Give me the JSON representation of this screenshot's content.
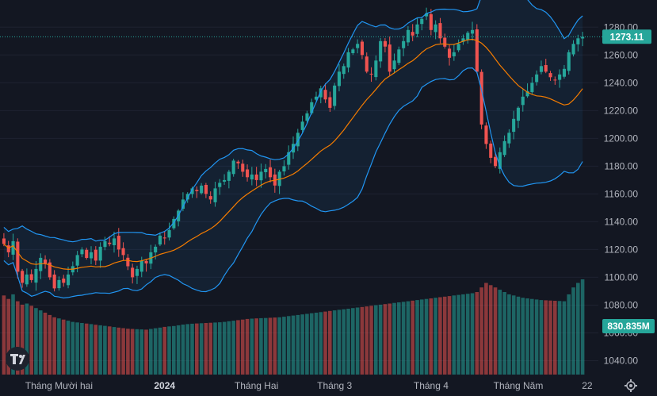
{
  "chart_data": {
    "type": "candlestick",
    "symbol_price_label": "1273.11",
    "volume_label": "830.835M",
    "y_axis": {
      "range": [
        1030,
        1295
      ],
      "ticks": [
        {
          "value": 1280,
          "label": "1280.00"
        },
        {
          "value": 1260,
          "label": "1260.00"
        },
        {
          "value": 1240,
          "label": "1240.00"
        },
        {
          "value": 1220,
          "label": "1220.00"
        },
        {
          "value": 1200,
          "label": "1200.00"
        },
        {
          "value": 1180,
          "label": "1180.00"
        },
        {
          "value": 1160,
          "label": "1160.00"
        },
        {
          "value": 1140,
          "label": "1140.00"
        },
        {
          "value": 1120,
          "label": "1120.00"
        },
        {
          "value": 1100,
          "label": "1100.00"
        },
        {
          "value": 1080,
          "label": "1080.00"
        },
        {
          "value": 1060,
          "label": "1060.00"
        },
        {
          "value": 1040,
          "label": "1040.00"
        }
      ]
    },
    "x_axis": {
      "labels": [
        {
          "index": 12,
          "label": "Tháng Mười hai",
          "bold": false
        },
        {
          "index": 35,
          "label": "2024",
          "bold": true
        },
        {
          "index": 55,
          "label": "Tháng Hai",
          "bold": false
        },
        {
          "index": 72,
          "label": "Tháng 3",
          "bold": false
        },
        {
          "index": 93,
          "label": "Tháng 4",
          "bold": false
        },
        {
          "index": 112,
          "label": "Tháng Năm",
          "bold": false
        },
        {
          "index": 127,
          "label": "22",
          "bold": false
        }
      ]
    },
    "series": {
      "close": [
        1124,
        1118,
        1126,
        1104,
        1096,
        1102,
        1098,
        1106,
        1114,
        1110,
        1100,
        1092,
        1098,
        1096,
        1102,
        1108,
        1116,
        1120,
        1114,
        1118,
        1112,
        1122,
        1126,
        1124,
        1128,
        1120,
        1116,
        1108,
        1100,
        1106,
        1112,
        1110,
        1118,
        1122,
        1130,
        1128,
        1134,
        1142,
        1148,
        1156,
        1160,
        1164,
        1162,
        1166,
        1160,
        1156,
        1164,
        1168,
        1170,
        1176,
        1184,
        1182,
        1176,
        1172,
        1174,
        1170,
        1176,
        1178,
        1172,
        1166,
        1176,
        1180,
        1190,
        1196,
        1204,
        1212,
        1218,
        1226,
        1230,
        1236,
        1228,
        1222,
        1238,
        1248,
        1252,
        1262,
        1264,
        1268,
        1260,
        1248,
        1246,
        1256,
        1270,
        1266,
        1248,
        1256,
        1264,
        1270,
        1278,
        1274,
        1282,
        1286,
        1290,
        1278,
        1282,
        1272,
        1266,
        1258,
        1262,
        1268,
        1272,
        1276,
        1278,
        1248,
        1210,
        1196,
        1186,
        1180,
        1190,
        1198,
        1204,
        1214,
        1222,
        1230,
        1234,
        1240,
        1246,
        1252,
        1248,
        1244,
        1242,
        1246,
        1250,
        1262,
        1268,
        1272,
        1273.11
      ],
      "volume": [
        690,
        660,
        700,
        640,
        610,
        620,
        600,
        580,
        560,
        540,
        520,
        500,
        490,
        480,
        470,
        460,
        455,
        450,
        445,
        440,
        435,
        430,
        425,
        420,
        415,
        410,
        405,
        400,
        398,
        396,
        394,
        392,
        398,
        404,
        410,
        416,
        420,
        424,
        430,
        436,
        440,
        444,
        446,
        448,
        450,
        452,
        454,
        456,
        460,
        465,
        470,
        475,
        480,
        485,
        488,
        490,
        492,
        494,
        496,
        498,
        500,
        505,
        510,
        515,
        520,
        525,
        530,
        535,
        540,
        545,
        550,
        555,
        560,
        565,
        570,
        575,
        580,
        585,
        590,
        595,
        600,
        605,
        610,
        615,
        620,
        625,
        630,
        635,
        640,
        645,
        650,
        655,
        660,
        665,
        670,
        675,
        680,
        685,
        690,
        695,
        700,
        705,
        710,
        720,
        760,
        800,
        780,
        760,
        740,
        720,
        700,
        690,
        680,
        670,
        665,
        660,
        655,
        650,
        648,
        646,
        644,
        642,
        640,
        700,
        760,
        800,
        830.835
      ]
    }
  }
}
